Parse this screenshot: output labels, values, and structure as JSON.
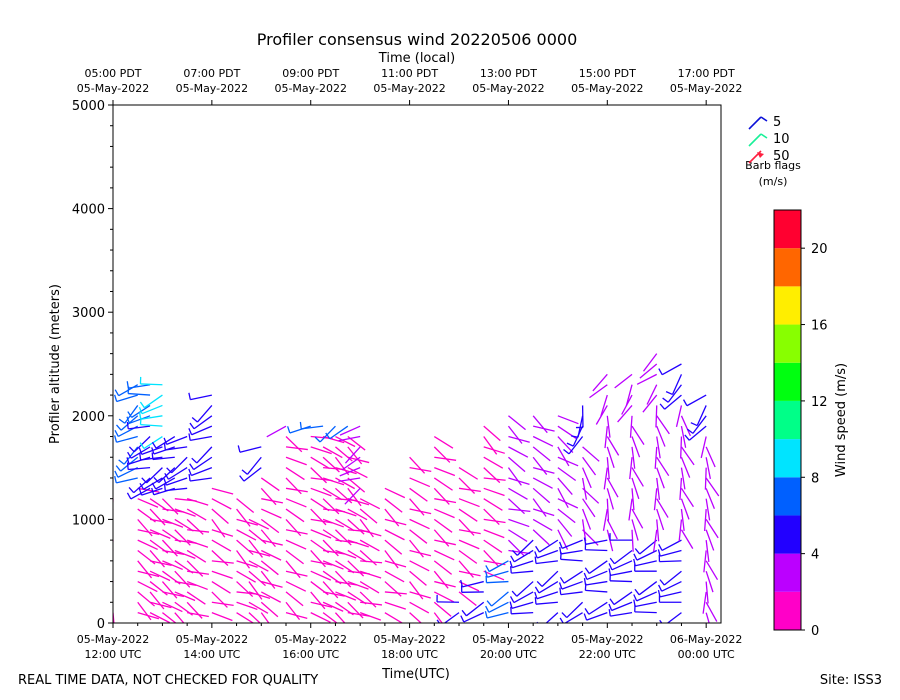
{
  "chart_data": {
    "type": "wind-barb",
    "title": "Profiler consensus wind 20220506 0000",
    "top_axis_label": "Time (local)",
    "top_ticks": [
      {
        "line1": "05:00 PDT",
        "line2": "05-May-2022",
        "x_hours": 12
      },
      {
        "line1": "07:00 PDT",
        "line2": "05-May-2022",
        "x_hours": 14
      },
      {
        "line1": "09:00 PDT",
        "line2": "05-May-2022",
        "x_hours": 16
      },
      {
        "line1": "11:00 PDT",
        "line2": "05-May-2022",
        "x_hours": 18
      },
      {
        "line1": "13:00 PDT",
        "line2": "05-May-2022",
        "x_hours": 20
      },
      {
        "line1": "15:00 PDT",
        "line2": "05-May-2022",
        "x_hours": 22
      },
      {
        "line1": "17:00 PDT",
        "line2": "05-May-2022",
        "x_hours": 24
      }
    ],
    "bottom_ticks": [
      {
        "line1": "05-May-2022",
        "line2": "12:00 UTC",
        "x_hours": 12
      },
      {
        "line1": "05-May-2022",
        "line2": "14:00 UTC",
        "x_hours": 14
      },
      {
        "line1": "05-May-2022",
        "line2": "16:00 UTC",
        "x_hours": 16
      },
      {
        "line1": "05-May-2022",
        "line2": "18:00 UTC",
        "x_hours": 18
      },
      {
        "line1": "05-May-2022",
        "line2": "20:00 UTC",
        "x_hours": 20
      },
      {
        "line1": "05-May-2022",
        "line2": "22:00 UTC",
        "x_hours": 22
      },
      {
        "line1": "06-May-2022",
        "line2": "00:00 UTC",
        "x_hours": 24
      }
    ],
    "xlabel": "Time(UTC)",
    "ylabel": "Profiler altitude (meters)",
    "xlim_hours": [
      12,
      24.3
    ],
    "ylim": [
      0,
      5000
    ],
    "y_ticks": [
      0,
      1000,
      2000,
      3000,
      4000,
      5000
    ],
    "y_tick_labels": [
      "0",
      "1000",
      "2000",
      "3000",
      "4000",
      "5000"
    ],
    "legend": {
      "entries": [
        {
          "label": "5",
          "color": "#0b10d8"
        },
        {
          "label": "10",
          "color": "#18f098"
        },
        {
          "label": "50",
          "color": "#ff2040"
        }
      ],
      "title_line1": "Barb flags",
      "title_line2": "(m/s)"
    },
    "colorbar": {
      "label": "Wind speed (m/s)",
      "min": 0,
      "max": 22,
      "bins": [
        {
          "from": 0,
          "to": 2,
          "color": "#ff00c8"
        },
        {
          "from": 2,
          "to": 4,
          "color": "#bb00ff"
        },
        {
          "from": 4,
          "to": 6,
          "color": "#2200ff"
        },
        {
          "from": 6,
          "to": 8,
          "color": "#0060ff"
        },
        {
          "from": 8,
          "to": 10,
          "color": "#00e4ff"
        },
        {
          "from": 10,
          "to": 12,
          "color": "#00ff88"
        },
        {
          "from": 12,
          "to": 14,
          "color": "#00ff10"
        },
        {
          "from": 14,
          "to": 16,
          "color": "#88ff00"
        },
        {
          "from": 16,
          "to": 18,
          "color": "#ffee00"
        },
        {
          "from": 18,
          "to": 20,
          "color": "#ff6600"
        },
        {
          "from": 20,
          "to": 22,
          "color": "#ff0030"
        }
      ],
      "ticks": [
        0,
        4,
        8,
        12,
        16,
        20
      ],
      "tick_labels": [
        "0",
        "4",
        "8",
        "12",
        "16",
        "20"
      ]
    },
    "profiles": [
      {
        "t": 12.0,
        "top": 2300,
        "bins": [
          [
            2300,
            1700,
            7,
            250
          ],
          [
            1700,
            1200,
            5,
            250
          ],
          [
            1200,
            0,
            1.5,
            200
          ]
        ]
      },
      {
        "t": 12.5,
        "top": 2350,
        "bins": [
          [
            2350,
            1300,
            6,
            240
          ],
          [
            1300,
            0,
            1.5,
            120
          ]
        ]
      },
      {
        "t": 12.75,
        "top": 2300,
        "bins": [
          [
            2300,
            1900,
            7,
            250
          ],
          [
            1900,
            1200,
            5,
            250
          ],
          [
            1200,
            0,
            1.5,
            120
          ]
        ]
      },
      {
        "t": 13.0,
        "top": 2300,
        "bins": [
          [
            2300,
            1750,
            8,
            250
          ],
          [
            1750,
            1200,
            5,
            250
          ],
          [
            1200,
            0,
            1.5,
            120
          ]
        ]
      },
      {
        "t": 13.25,
        "top": 1800,
        "bins": [
          [
            1800,
            1200,
            5,
            240
          ],
          [
            1200,
            0,
            1.5,
            120
          ]
        ]
      },
      {
        "t": 13.5,
        "top": 1800,
        "bins": [
          [
            1800,
            1200,
            5,
            240
          ],
          [
            1200,
            0,
            1.5,
            120
          ]
        ]
      },
      {
        "t": 14.0,
        "top": 2200,
        "bins": [
          [
            2200,
            1300,
            5,
            240
          ],
          [
            1300,
            0,
            1.5,
            120
          ]
        ]
      },
      {
        "t": 14.5,
        "top": 1200,
        "bins": [
          [
            1200,
            0,
            1.5,
            120
          ]
        ]
      },
      {
        "t": 14.75,
        "top": 1000,
        "bins": [
          [
            1000,
            0,
            1.5,
            120
          ]
        ]
      },
      {
        "t": 15.0,
        "top": 1700,
        "bins": [
          [
            1700,
            1400,
            5,
            240
          ],
          [
            1400,
            0,
            1.5,
            120
          ]
        ]
      },
      {
        "t": 15.5,
        "top": 1900,
        "bins": [
          [
            1900,
            1800,
            2,
            240
          ],
          [
            1800,
            0,
            1.5,
            120
          ]
        ]
      },
      {
        "t": 16.0,
        "top": 1900,
        "bins": [
          [
            1900,
            1850,
            6,
            240
          ],
          [
            1850,
            0,
            1.5,
            120
          ]
        ]
      },
      {
        "t": 16.25,
        "top": 1900,
        "bins": [
          [
            1900,
            1850,
            6,
            240
          ],
          [
            1850,
            0,
            1.5,
            120
          ]
        ]
      },
      {
        "t": 16.5,
        "top": 1900,
        "bins": [
          [
            1900,
            1850,
            6,
            240
          ],
          [
            1850,
            0,
            1.5,
            120
          ]
        ]
      },
      {
        "t": 16.75,
        "top": 1900,
        "bins": [
          [
            1900,
            1850,
            6,
            240
          ],
          [
            1850,
            0,
            1.5,
            120
          ]
        ]
      },
      {
        "t": 17.0,
        "top": 1900,
        "bins": [
          [
            1900,
            1200,
            3,
            240
          ],
          [
            1200,
            0,
            1.5,
            120
          ]
        ]
      },
      {
        "t": 17.5,
        "top": 1300,
        "bins": [
          [
            1300,
            0,
            1.5,
            120
          ]
        ]
      },
      {
        "t": 18.0,
        "top": 1600,
        "bins": [
          [
            1600,
            0,
            1.5,
            120
          ]
        ]
      },
      {
        "t": 18.5,
        "top": 1800,
        "bins": [
          [
            1800,
            0,
            1.5,
            120
          ]
        ]
      },
      {
        "t": 19.0,
        "top": 1500,
        "bins": [
          [
            1500,
            200,
            1.5,
            120
          ],
          [
            200,
            0,
            4,
            250
          ]
        ]
      },
      {
        "t": 19.5,
        "top": 1900,
        "bins": [
          [
            1900,
            400,
            1.5,
            120
          ],
          [
            400,
            0,
            4,
            250
          ]
        ]
      },
      {
        "t": 20.0,
        "top": 2000,
        "bins": [
          [
            2000,
            600,
            2,
            120
          ],
          [
            600,
            0,
            6,
            250
          ]
        ]
      },
      {
        "t": 20.5,
        "top": 2000,
        "bins": [
          [
            2000,
            800,
            2,
            120
          ],
          [
            800,
            0,
            5,
            250
          ]
        ]
      },
      {
        "t": 21.0,
        "top": 2000,
        "bins": [
          [
            2000,
            800,
            2,
            130
          ],
          [
            800,
            0,
            4,
            250
          ]
        ]
      },
      {
        "t": 21.5,
        "top": 2100,
        "bins": [
          [
            2100,
            1700,
            4,
            200
          ],
          [
            1700,
            800,
            2,
            150
          ],
          [
            800,
            0,
            4,
            250
          ]
        ]
      },
      {
        "t": 22.0,
        "top": 2400,
        "bins": [
          [
            2400,
            2000,
            2,
            220
          ],
          [
            2000,
            800,
            2,
            170
          ],
          [
            800,
            0,
            4,
            250
          ]
        ]
      },
      {
        "t": 22.5,
        "top": 2400,
        "bins": [
          [
            2400,
            2000,
            2,
            220
          ],
          [
            2000,
            800,
            3,
            170
          ],
          [
            800,
            0,
            4,
            250
          ]
        ]
      },
      {
        "t": 23.0,
        "top": 2600,
        "bins": [
          [
            2600,
            2100,
            3,
            220
          ],
          [
            2100,
            800,
            2,
            170
          ],
          [
            800,
            0,
            4,
            250
          ]
        ]
      },
      {
        "t": 23.5,
        "top": 2500,
        "bins": [
          [
            2500,
            2100,
            4,
            220
          ],
          [
            2100,
            800,
            2,
            170
          ],
          [
            800,
            0,
            4,
            250
          ]
        ]
      },
      {
        "t": 24.0,
        "top": 2200,
        "bins": [
          [
            2200,
            1800,
            5,
            220
          ],
          [
            1800,
            0,
            2,
            170
          ]
        ]
      }
    ]
  },
  "footer": {
    "left": "REAL TIME DATA, NOT CHECKED FOR QUALITY",
    "right": "Site: ISS3"
  }
}
